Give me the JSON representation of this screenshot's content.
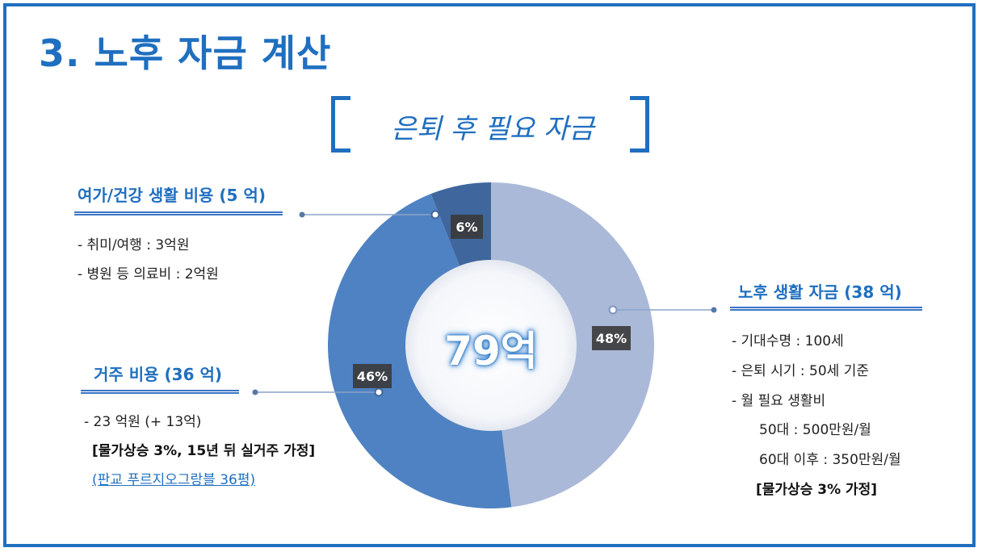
{
  "title": "3. 노후 자금 계산",
  "subtitle": "은퇴 후 필요 자금",
  "center_total": "79억",
  "sections": {
    "leisure": {
      "heading": "여가/건강 생활 비용 (5 억)",
      "items": [
        "- 취미/여행 : 3억원",
        "- 병원 등 의료비 : 2억원"
      ]
    },
    "housing": {
      "heading": "거주 비용 (36 억)",
      "items": [
        "- 23 억원 (+ 13억)",
        "[물가상승 3%, 15년 뒤 실거주 가정]",
        "(판교 푸르지오그랑블 36평)"
      ]
    },
    "living": {
      "heading": "노후 생활 자금 (38 억)",
      "items": [
        "- 기대수명 : 100세",
        "- 은퇴 시기 : 50세 기준",
        "- 월 필요 생활비",
        "50대 : 500만원/월",
        "60대 이후 : 350만원/월",
        "[물가상승 3% 가정]"
      ]
    }
  },
  "chart_data": {
    "type": "pie",
    "donut": true,
    "categories": [
      "노후 생활 자금",
      "거주 비용",
      "여가/건강 생활 비용"
    ],
    "values": [
      48,
      46,
      6
    ],
    "labels": [
      "48%",
      "46%",
      "6%"
    ],
    "colors": [
      "#aab9d8",
      "#4f82c2",
      "#3f679e"
    ]
  }
}
